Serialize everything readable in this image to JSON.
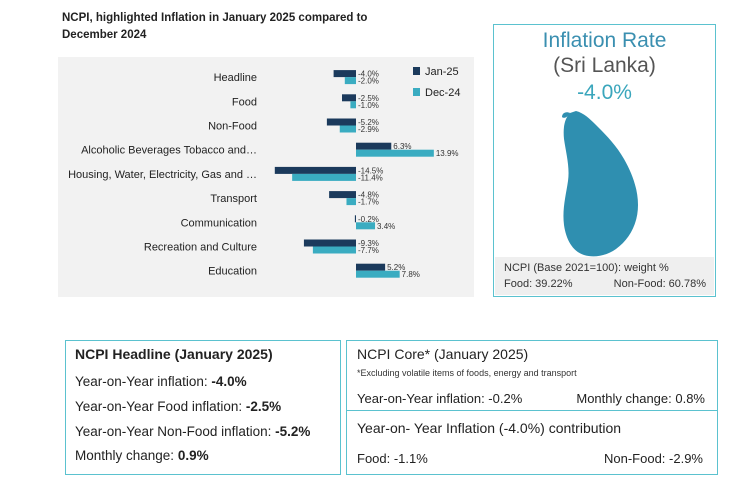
{
  "chart_title": "NCPI, highlighted Inflation in January 2025 compared to December 2024",
  "chart_data": {
    "type": "bar",
    "orientation": "horizontal",
    "title": "NCPI, highlighted Inflation in January 2025 compared to December 2024",
    "categories": [
      "Headline",
      "Food",
      "Non-Food",
      "Alcoholic Beverages Tobacco and…",
      "Housing, Water, Electricity, Gas and …",
      "Transport",
      "Communication",
      "Recreation and Culture",
      "Education"
    ],
    "series": [
      {
        "name": "Jan-25",
        "color": "#1b3a5c",
        "values": [
          -4.0,
          -2.5,
          -5.2,
          6.3,
          -14.5,
          -4.8,
          -0.2,
          -9.3,
          5.2
        ],
        "labels": [
          "-4.0%",
          "-2.5%",
          "-5.2%",
          "6.3%",
          "-14.5%",
          "-4.8%",
          "-0.2%",
          "-9.3%",
          "5.2%"
        ]
      },
      {
        "name": "Dec-24",
        "color": "#3aacc1",
        "values": [
          -2.0,
          -1.0,
          -2.9,
          13.9,
          -11.4,
          -1.7,
          3.4,
          -7.7,
          7.8
        ],
        "labels": [
          "-2.0%",
          "-1.0%",
          "-2.9%",
          "13.9%",
          "-11.4%",
          "-1.7%",
          "3.4%",
          "-7.7%",
          "7.8%"
        ]
      }
    ],
    "legend": "top-right",
    "grid": false
  },
  "inflation_panel": {
    "title": "Inflation Rate",
    "country": "(Sri Lanka)",
    "value": "-4.0%",
    "map_icon": "sri-lanka-map-icon",
    "map_color": "#2f8fb0",
    "weights_title": "NCPI (Base 2021=100): weight %",
    "food_weight": "Food: 39.22%",
    "nonfood_weight": "Non-Food: 60.78%"
  },
  "headline_box": {
    "title": "NCPI Headline (January 2025)",
    "rows": [
      {
        "label": "Year-on-Year inflation: ",
        "value": "-4.0%"
      },
      {
        "label": "Year-on-Year Food inflation: ",
        "value": "-2.5%"
      },
      {
        "label": "Year-on-Year Non-Food inflation: ",
        "value": "-5.2%"
      },
      {
        "label": "Monthly change: ",
        "value": "0.9%"
      }
    ]
  },
  "core_box": {
    "title": "NCPI Core* (January 2025)",
    "note": "*Excluding volatile items of foods, energy and transport",
    "yoy": "Year-on-Year inflation: -0.2%",
    "monthly": "Monthly change: 0.8%"
  },
  "contrib_box": {
    "title": "Year-on- Year Inflation (-4.0%) contribution",
    "food": "Food: -1.1%",
    "nonfood": "Non-Food: -2.9%"
  },
  "colors": {
    "accent": "#5bc2cf",
    "jan": "#1b3a5c",
    "dec": "#3aacc1"
  }
}
